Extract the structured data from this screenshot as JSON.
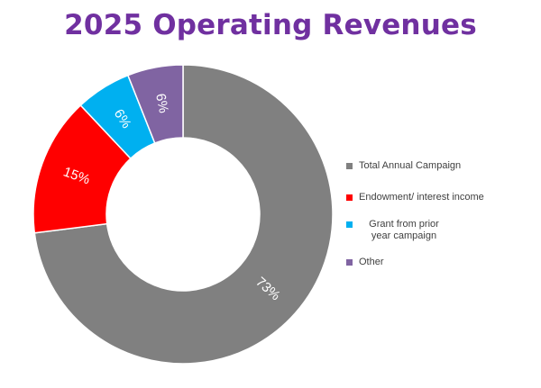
{
  "chart_data": {
    "type": "pie",
    "style": "donut",
    "title": "2025 Operating Revenues",
    "categories": [
      "Total Annual Campaign",
      "Endowment/ interest income",
      "Grant from prior year campaign",
      "Other"
    ],
    "values": [
      73,
      15,
      6,
      6
    ],
    "labels": [
      "73%",
      "15%",
      "6%",
      "6%"
    ],
    "colors": [
      "#808080",
      "#ff0000",
      "#00b0f0",
      "#8064a2"
    ],
    "legend_position": "right",
    "title_color": "#7030a0"
  }
}
